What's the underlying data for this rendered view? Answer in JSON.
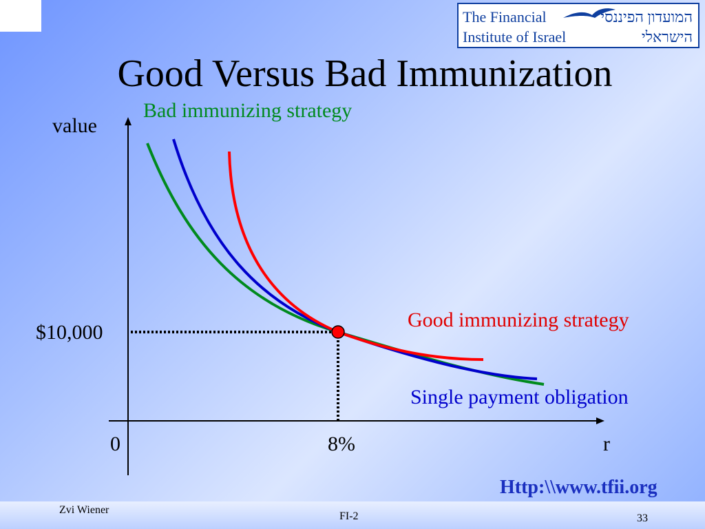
{
  "slide": {
    "title": "Good Versus Bad Immunization",
    "url": "Http:\\\\www.tfii.org",
    "footer": {
      "author": "Zvi Wiener",
      "course": "FI-2",
      "page": "33"
    }
  },
  "brand": {
    "line1_en": "The Financial",
    "line2_en": "Institute of Israel",
    "line1_he": "המועדון הפיננסי",
    "line2_he": "הישראלי",
    "icon": "bird-icon",
    "color": "#0f3f9f"
  },
  "diagram": {
    "y_axis_label": "value",
    "x_axis_label": "r",
    "origin_label": "0",
    "x_tick_label": "8%",
    "y_tick_label": "$10,000",
    "labels": {
      "bad": "Bad immunizing strategy",
      "good": "Good immunizing strategy",
      "single": "Single payment obligation"
    },
    "colors": {
      "bad": "#008a1e",
      "good": "#ff0000",
      "single": "#0000cc",
      "label_good": "#e00000",
      "label_single": "#0000cc",
      "label_bad": "#008a1e",
      "point": "#ff0000"
    }
  }
}
